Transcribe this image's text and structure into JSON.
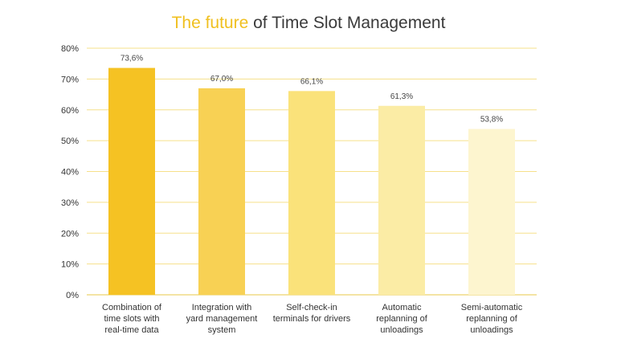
{
  "title": {
    "accent": "The future",
    "rest": " of Time Slot Management"
  },
  "chart_data": {
    "type": "bar",
    "title": "The future of Time Slot Management",
    "categories": [
      "Combination of time slots with real-time data",
      "Integration with yard management system",
      "Self-check-in terminals for drivers",
      "Automatic replanning of unloadings",
      "Semi-automatic replanning of unloadings"
    ],
    "category_lines": [
      [
        "Combination of",
        "time slots with",
        "real-time data"
      ],
      [
        "Integration with",
        "yard management",
        "system"
      ],
      [
        "Self-check-in",
        "terminals for drivers"
      ],
      [
        "Automatic",
        "replanning of",
        "unloadings"
      ],
      [
        "Semi-automatic",
        "replanning of",
        "unloadings"
      ]
    ],
    "values": [
      73.6,
      67.0,
      66.1,
      61.3,
      53.8
    ],
    "data_labels": [
      "73,6%",
      "67,0%",
      "66,1%",
      "61,3%",
      "53,8%"
    ],
    "bar_colors": [
      "#f5c223",
      "#f8d154",
      "#fae27a",
      "#fbeca5",
      "#fdf5cf"
    ],
    "y_ticks": [
      0,
      10,
      20,
      30,
      40,
      50,
      60,
      70,
      80
    ],
    "y_tick_labels": [
      "0%",
      "10%",
      "20%",
      "30%",
      "40%",
      "50%",
      "60%",
      "70%",
      "80%"
    ],
    "ylim": [
      0,
      80
    ],
    "grid": true,
    "grid_color": "#f6e08a",
    "xlabel": "",
    "ylabel": ""
  }
}
